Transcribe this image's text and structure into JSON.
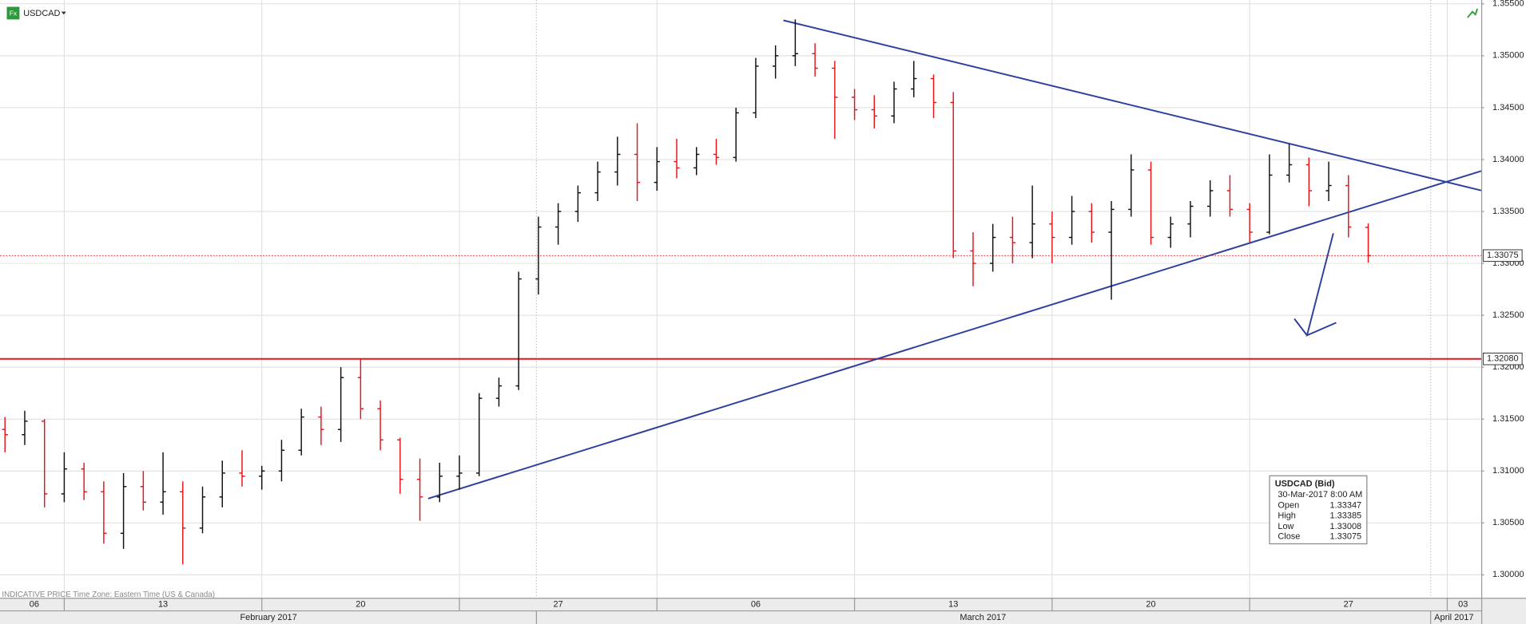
{
  "chart_data": {
    "type": "ohlc",
    "footer": "INDICATIVE PRICE   Time Zone: Eastern Time (US & Canada)",
    "up_color": "#111111",
    "down_color": "#e8141a",
    "grid": true,
    "xlim": [
      3.374,
      40.86
    ],
    "ylim": [
      1.29779,
      1.35537
    ],
    "yticks": [
      {
        "value": 1.3,
        "label": "1.30000"
      },
      {
        "value": 1.305,
        "label": "1.30500"
      },
      {
        "value": 1.31,
        "label": "1.31000"
      },
      {
        "value": 1.315,
        "label": "1.31500"
      },
      {
        "value": 1.32,
        "label": "1.32000"
      },
      {
        "value": 1.325,
        "label": "1.32500"
      },
      {
        "value": 1.33,
        "label": "1.33000"
      },
      {
        "value": 1.335,
        "label": "1.33500"
      },
      {
        "value": 1.34,
        "label": "1.34000"
      },
      {
        "value": 1.345,
        "label": "1.34500"
      },
      {
        "value": 1.35,
        "label": "1.35000"
      },
      {
        "value": 1.355,
        "label": "1.35500"
      }
    ],
    "xticks": [
      {
        "value": 4.24,
        "label": "06"
      },
      {
        "value": 7.5,
        "label": "13"
      },
      {
        "value": 12.5,
        "label": "20"
      },
      {
        "value": 17.5,
        "label": "27"
      },
      {
        "value": 22.5,
        "label": "06"
      },
      {
        "value": 27.5,
        "label": "13"
      },
      {
        "value": 32.5,
        "label": "20"
      },
      {
        "value": 37.5,
        "label": "27"
      },
      {
        "value": 40.4,
        "label": "03"
      }
    ],
    "xgrid": [
      5,
      10,
      15,
      20,
      25,
      30,
      35,
      40
    ],
    "month_boundaries": [
      16.95,
      39.58
    ],
    "month_ticks": [
      {
        "value": 10.17,
        "label": "February 2017"
      },
      {
        "value": 28.25,
        "label": "March 2017"
      },
      {
        "value": 40.17,
        "label": "April 2017"
      }
    ],
    "levels": [
      {
        "value": 1.3208,
        "label": "1.32080",
        "color": "#e8141a",
        "style": "solid"
      },
      {
        "value": 1.33075,
        "label": "1.33075",
        "color": "#e8141a",
        "style": "dotted"
      }
    ],
    "trendlines": [
      {
        "x": [
          23.2,
          40.86
        ],
        "y": [
          1.35341,
          1.33702
        ],
        "color": "#2e3f9e"
      },
      {
        "x": [
          14.21,
          40.86
        ],
        "y": [
          1.30734,
          1.3389
        ],
        "color": "#2e3f9e"
      }
    ],
    "x": [
      3.5,
      4,
      4.5,
      5,
      5.5,
      6,
      6.5,
      7,
      7.5,
      8,
      8.5,
      9,
      9.5,
      10,
      10.5,
      11,
      11.5,
      12,
      12.5,
      13,
      13.5,
      14,
      14.5,
      15,
      15.5,
      16,
      16.5,
      17,
      17.5,
      18,
      18.5,
      19,
      19.5,
      20,
      20.5,
      21,
      21.5,
      22,
      22.5,
      23,
      23.5,
      24,
      24.5,
      25,
      25.5,
      26,
      26.5,
      27,
      27.5,
      28,
      28.5,
      29,
      29.5,
      30,
      30.5,
      31,
      31.5,
      32,
      32.5,
      33,
      33.5,
      34,
      34.5,
      35,
      35.5,
      36,
      36.5,
      37,
      37.5,
      38
    ],
    "series": [
      {
        "name": "USDCAD",
        "open": [
          1.314,
          1.3135,
          1.3148,
          1.3078,
          1.3102,
          1.308,
          1.304,
          1.3085,
          1.307,
          1.308,
          1.3045,
          1.3075,
          1.3098,
          1.3095,
          1.31,
          1.312,
          1.3152,
          1.314,
          1.319,
          1.316,
          1.313,
          1.3092,
          1.3075,
          1.3095,
          1.3098,
          1.317,
          1.3182,
          1.3285,
          1.3335,
          1.335,
          1.3368,
          1.3388,
          1.3405,
          1.3378,
          1.3398,
          1.3392,
          1.3405,
          1.3402,
          1.3445,
          1.349,
          1.35,
          1.3502,
          1.3488,
          1.346,
          1.3448,
          1.3442,
          1.3468,
          1.3478,
          1.3455,
          1.3312,
          1.33,
          1.3325,
          1.332,
          1.3338,
          1.3325,
          1.335,
          1.333,
          1.3352,
          1.339,
          1.3325,
          1.3338,
          1.3355,
          1.337,
          1.3352,
          1.333,
          1.3385,
          1.3395,
          1.337,
          1.3375,
          1.33347
        ],
        "high": [
          1.3152,
          1.3158,
          1.315,
          1.3118,
          1.3108,
          1.309,
          1.3098,
          1.31,
          1.3118,
          1.309,
          1.3085,
          1.311,
          1.312,
          1.3105,
          1.313,
          1.316,
          1.3162,
          1.32,
          1.3208,
          1.3168,
          1.3132,
          1.3112,
          1.3108,
          1.3115,
          1.3175,
          1.319,
          1.3292,
          1.3345,
          1.3358,
          1.3375,
          1.3398,
          1.3422,
          1.3435,
          1.3412,
          1.342,
          1.3412,
          1.342,
          1.345,
          1.3498,
          1.351,
          1.3535,
          1.3512,
          1.3495,
          1.3468,
          1.3462,
          1.3475,
          1.3495,
          1.3482,
          1.3465,
          1.333,
          1.3338,
          1.3345,
          1.3375,
          1.335,
          1.3365,
          1.3358,
          1.336,
          1.3405,
          1.3398,
          1.3345,
          1.336,
          1.338,
          1.3385,
          1.3358,
          1.3405,
          1.3415,
          1.3402,
          1.3398,
          1.3385,
          1.33385
        ],
        "low": [
          1.3118,
          1.3125,
          1.3065,
          1.307,
          1.3072,
          1.303,
          1.3025,
          1.3062,
          1.3058,
          1.301,
          1.304,
          1.3065,
          1.3085,
          1.3082,
          1.309,
          1.3115,
          1.3125,
          1.3128,
          1.315,
          1.312,
          1.3078,
          1.3052,
          1.307,
          1.3082,
          1.3095,
          1.3162,
          1.3178,
          1.327,
          1.3318,
          1.334,
          1.336,
          1.3375,
          1.336,
          1.337,
          1.3382,
          1.3385,
          1.3395,
          1.3398,
          1.344,
          1.3478,
          1.349,
          1.348,
          1.342,
          1.3438,
          1.343,
          1.3435,
          1.346,
          1.344,
          1.3305,
          1.3278,
          1.3292,
          1.33,
          1.3305,
          1.33,
          1.3318,
          1.332,
          1.3265,
          1.3345,
          1.3318,
          1.3315,
          1.3325,
          1.3345,
          1.3345,
          1.332,
          1.3328,
          1.3378,
          1.3355,
          1.336,
          1.3325,
          1.33008
        ],
        "close": [
          1.3135,
          1.3148,
          1.3078,
          1.3102,
          1.308,
          1.304,
          1.3085,
          1.307,
          1.308,
          1.3045,
          1.3075,
          1.3098,
          1.3095,
          1.31,
          1.312,
          1.3152,
          1.314,
          1.319,
          1.316,
          1.313,
          1.3092,
          1.3075,
          1.3095,
          1.3098,
          1.317,
          1.3182,
          1.3285,
          1.3335,
          1.335,
          1.3368,
          1.3388,
          1.3405,
          1.3378,
          1.3398,
          1.3392,
          1.3405,
          1.3402,
          1.3445,
          1.349,
          1.35,
          1.3502,
          1.3488,
          1.346,
          1.3448,
          1.3442,
          1.3468,
          1.3478,
          1.3455,
          1.3312,
          1.33,
          1.3325,
          1.332,
          1.3338,
          1.3325,
          1.335,
          1.333,
          1.3352,
          1.339,
          1.3325,
          1.3338,
          1.3355,
          1.337,
          1.3352,
          1.333,
          1.3385,
          1.3395,
          1.337,
          1.3375,
          1.3335,
          1.33075
        ]
      }
    ],
    "info_box": {
      "title": "USDCAD (Bid)",
      "date": "30-Mar-2017 8:00 AM",
      "rows": [
        {
          "label": "Open",
          "value": 1.33347
        },
        {
          "label": "High",
          "value": 1.33385
        },
        {
          "label": "Low",
          "value": 1.33008
        },
        {
          "label": "Close",
          "value": 1.33075
        }
      ]
    }
  }
}
